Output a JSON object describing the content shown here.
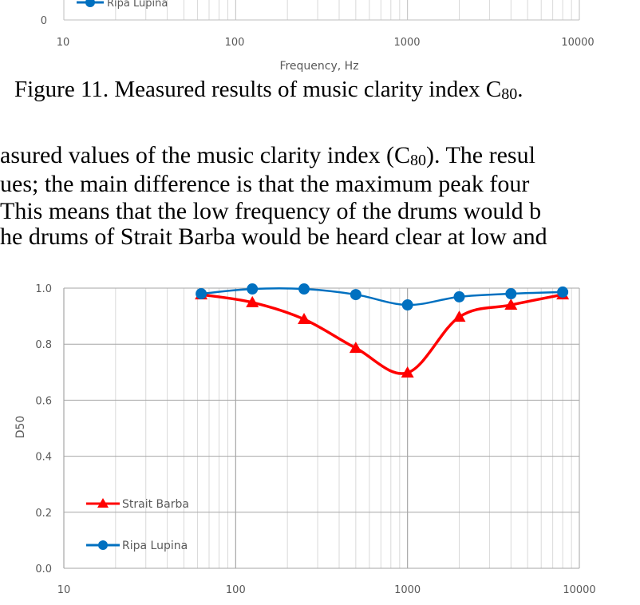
{
  "top_chart_fragment": {
    "legend_partial": "Ripa Lupina",
    "y_tick": "0",
    "x_ticks": [
      "10",
      "100",
      "1000",
      "10000"
    ],
    "xlabel": "Frequency, Hz"
  },
  "caption": {
    "text": "Figure 11. Measured results of music clarity index C",
    "sub": "80",
    "end": "."
  },
  "paragraph": {
    "line1a": "asured values of the music clarity index (C",
    "line1sub": "80",
    "line1b": "). The resul",
    "line2": "ues; the main difference is that the maximum peak four",
    "line3": " This means that the low frequency of the drums would b",
    "line4": "he drums of Strait Barba would be heard clear at low and"
  },
  "chart_data": {
    "type": "line",
    "xscale": "log",
    "xlim": [
      10,
      10000
    ],
    "ylim": [
      0,
      1.0
    ],
    "ylabel": "D50",
    "xlabel": "",
    "x_ticks": [
      "10",
      "100",
      "1000",
      "10000"
    ],
    "y_ticks": [
      "0.0",
      "0.2",
      "0.4",
      "0.6",
      "0.8",
      "1.0"
    ],
    "grid": true,
    "legend": "bottom-left",
    "x": [
      63,
      125,
      250,
      500,
      1000,
      2000,
      4000,
      8000
    ],
    "series": [
      {
        "name": "Strait Barba",
        "color": "#ff0000",
        "marker": "triangle",
        "values": [
          0.977,
          0.949,
          0.889,
          0.786,
          0.698,
          0.897,
          0.94,
          0.977
        ]
      },
      {
        "name": "Ripa Lupina",
        "color": "#0070c0",
        "marker": "circle",
        "values": [
          0.98,
          0.997,
          0.997,
          0.977,
          0.94,
          0.969,
          0.98,
          0.986
        ]
      }
    ]
  }
}
